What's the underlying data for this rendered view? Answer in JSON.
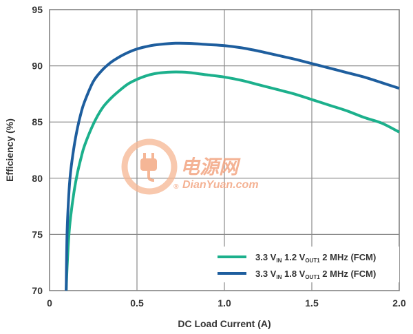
{
  "chart_data": {
    "type": "line",
    "title": "",
    "xlabel": "DC Load Current (A)",
    "ylabel": "Efficiency (%)",
    "xlim": [
      0,
      2.0
    ],
    "ylim": [
      70,
      95
    ],
    "xticks": [
      0,
      0.5,
      1.0,
      1.5,
      2.0
    ],
    "xtick_labels": [
      "0",
      "0.5",
      "1.0",
      "1.5",
      "2.0"
    ],
    "yticks": [
      70,
      75,
      80,
      85,
      90,
      95
    ],
    "ytick_labels": [
      "70",
      "75",
      "80",
      "85",
      "90",
      "95"
    ],
    "grid": true,
    "legend_position": "bottom-right",
    "series": [
      {
        "name": "3.3 VIN 1.2 VOUT1 2 MHz (FCM)",
        "legend_parts": [
          {
            "t": "3.3 V",
            "sub": false
          },
          {
            "t": "IN",
            "sub": true
          },
          {
            "t": " 1.2 V",
            "sub": false
          },
          {
            "t": "OUT1",
            "sub": true
          },
          {
            "t": " 2 MHz (FCM)",
            "sub": false
          }
        ],
        "color": "#1cb08c",
        "x": [
          0.095,
          0.1,
          0.11,
          0.12,
          0.14,
          0.16,
          0.18,
          0.2,
          0.25,
          0.3,
          0.35,
          0.4,
          0.45,
          0.5,
          0.55,
          0.6,
          0.65,
          0.7,
          0.75,
          0.8,
          0.9,
          1.0,
          1.1,
          1.2,
          1.3,
          1.4,
          1.5,
          1.6,
          1.7,
          1.8,
          1.9,
          2.0
        ],
        "y": [
          70.0,
          72.0,
          74.8,
          76.5,
          78.8,
          80.5,
          81.8,
          82.9,
          84.8,
          86.2,
          87.1,
          87.8,
          88.4,
          88.8,
          89.1,
          89.3,
          89.4,
          89.45,
          89.45,
          89.4,
          89.2,
          89.0,
          88.7,
          88.3,
          87.9,
          87.5,
          87.0,
          86.5,
          86.0,
          85.4,
          84.9,
          84.1
        ]
      },
      {
        "name": "3.3 VIN 1.8 VOUT1 2 MHz (FCM)",
        "legend_parts": [
          {
            "t": "3.3 V",
            "sub": false
          },
          {
            "t": "IN",
            "sub": true
          },
          {
            "t": " 1.8 V",
            "sub": false
          },
          {
            "t": "OUT1",
            "sub": true
          },
          {
            "t": " 2 MHz (FCM)",
            "sub": false
          }
        ],
        "color": "#1e5e9e",
        "x": [
          0.095,
          0.1,
          0.11,
          0.12,
          0.14,
          0.16,
          0.18,
          0.2,
          0.25,
          0.3,
          0.35,
          0.4,
          0.45,
          0.5,
          0.55,
          0.6,
          0.7,
          0.8,
          0.9,
          1.0,
          1.1,
          1.2,
          1.3,
          1.4,
          1.5,
          1.6,
          1.7,
          1.8,
          1.9,
          2.0
        ],
        "y": [
          70.0,
          75.0,
          78.5,
          80.5,
          82.8,
          84.5,
          85.8,
          86.8,
          88.6,
          89.6,
          90.3,
          90.8,
          91.2,
          91.5,
          91.7,
          91.85,
          92.0,
          92.0,
          91.9,
          91.8,
          91.6,
          91.3,
          90.95,
          90.6,
          90.2,
          89.8,
          89.4,
          89.0,
          88.5,
          88.0
        ]
      }
    ],
    "watermark": {
      "cn": "电源网",
      "url": "DianYuan.com",
      "registered": "®"
    }
  }
}
